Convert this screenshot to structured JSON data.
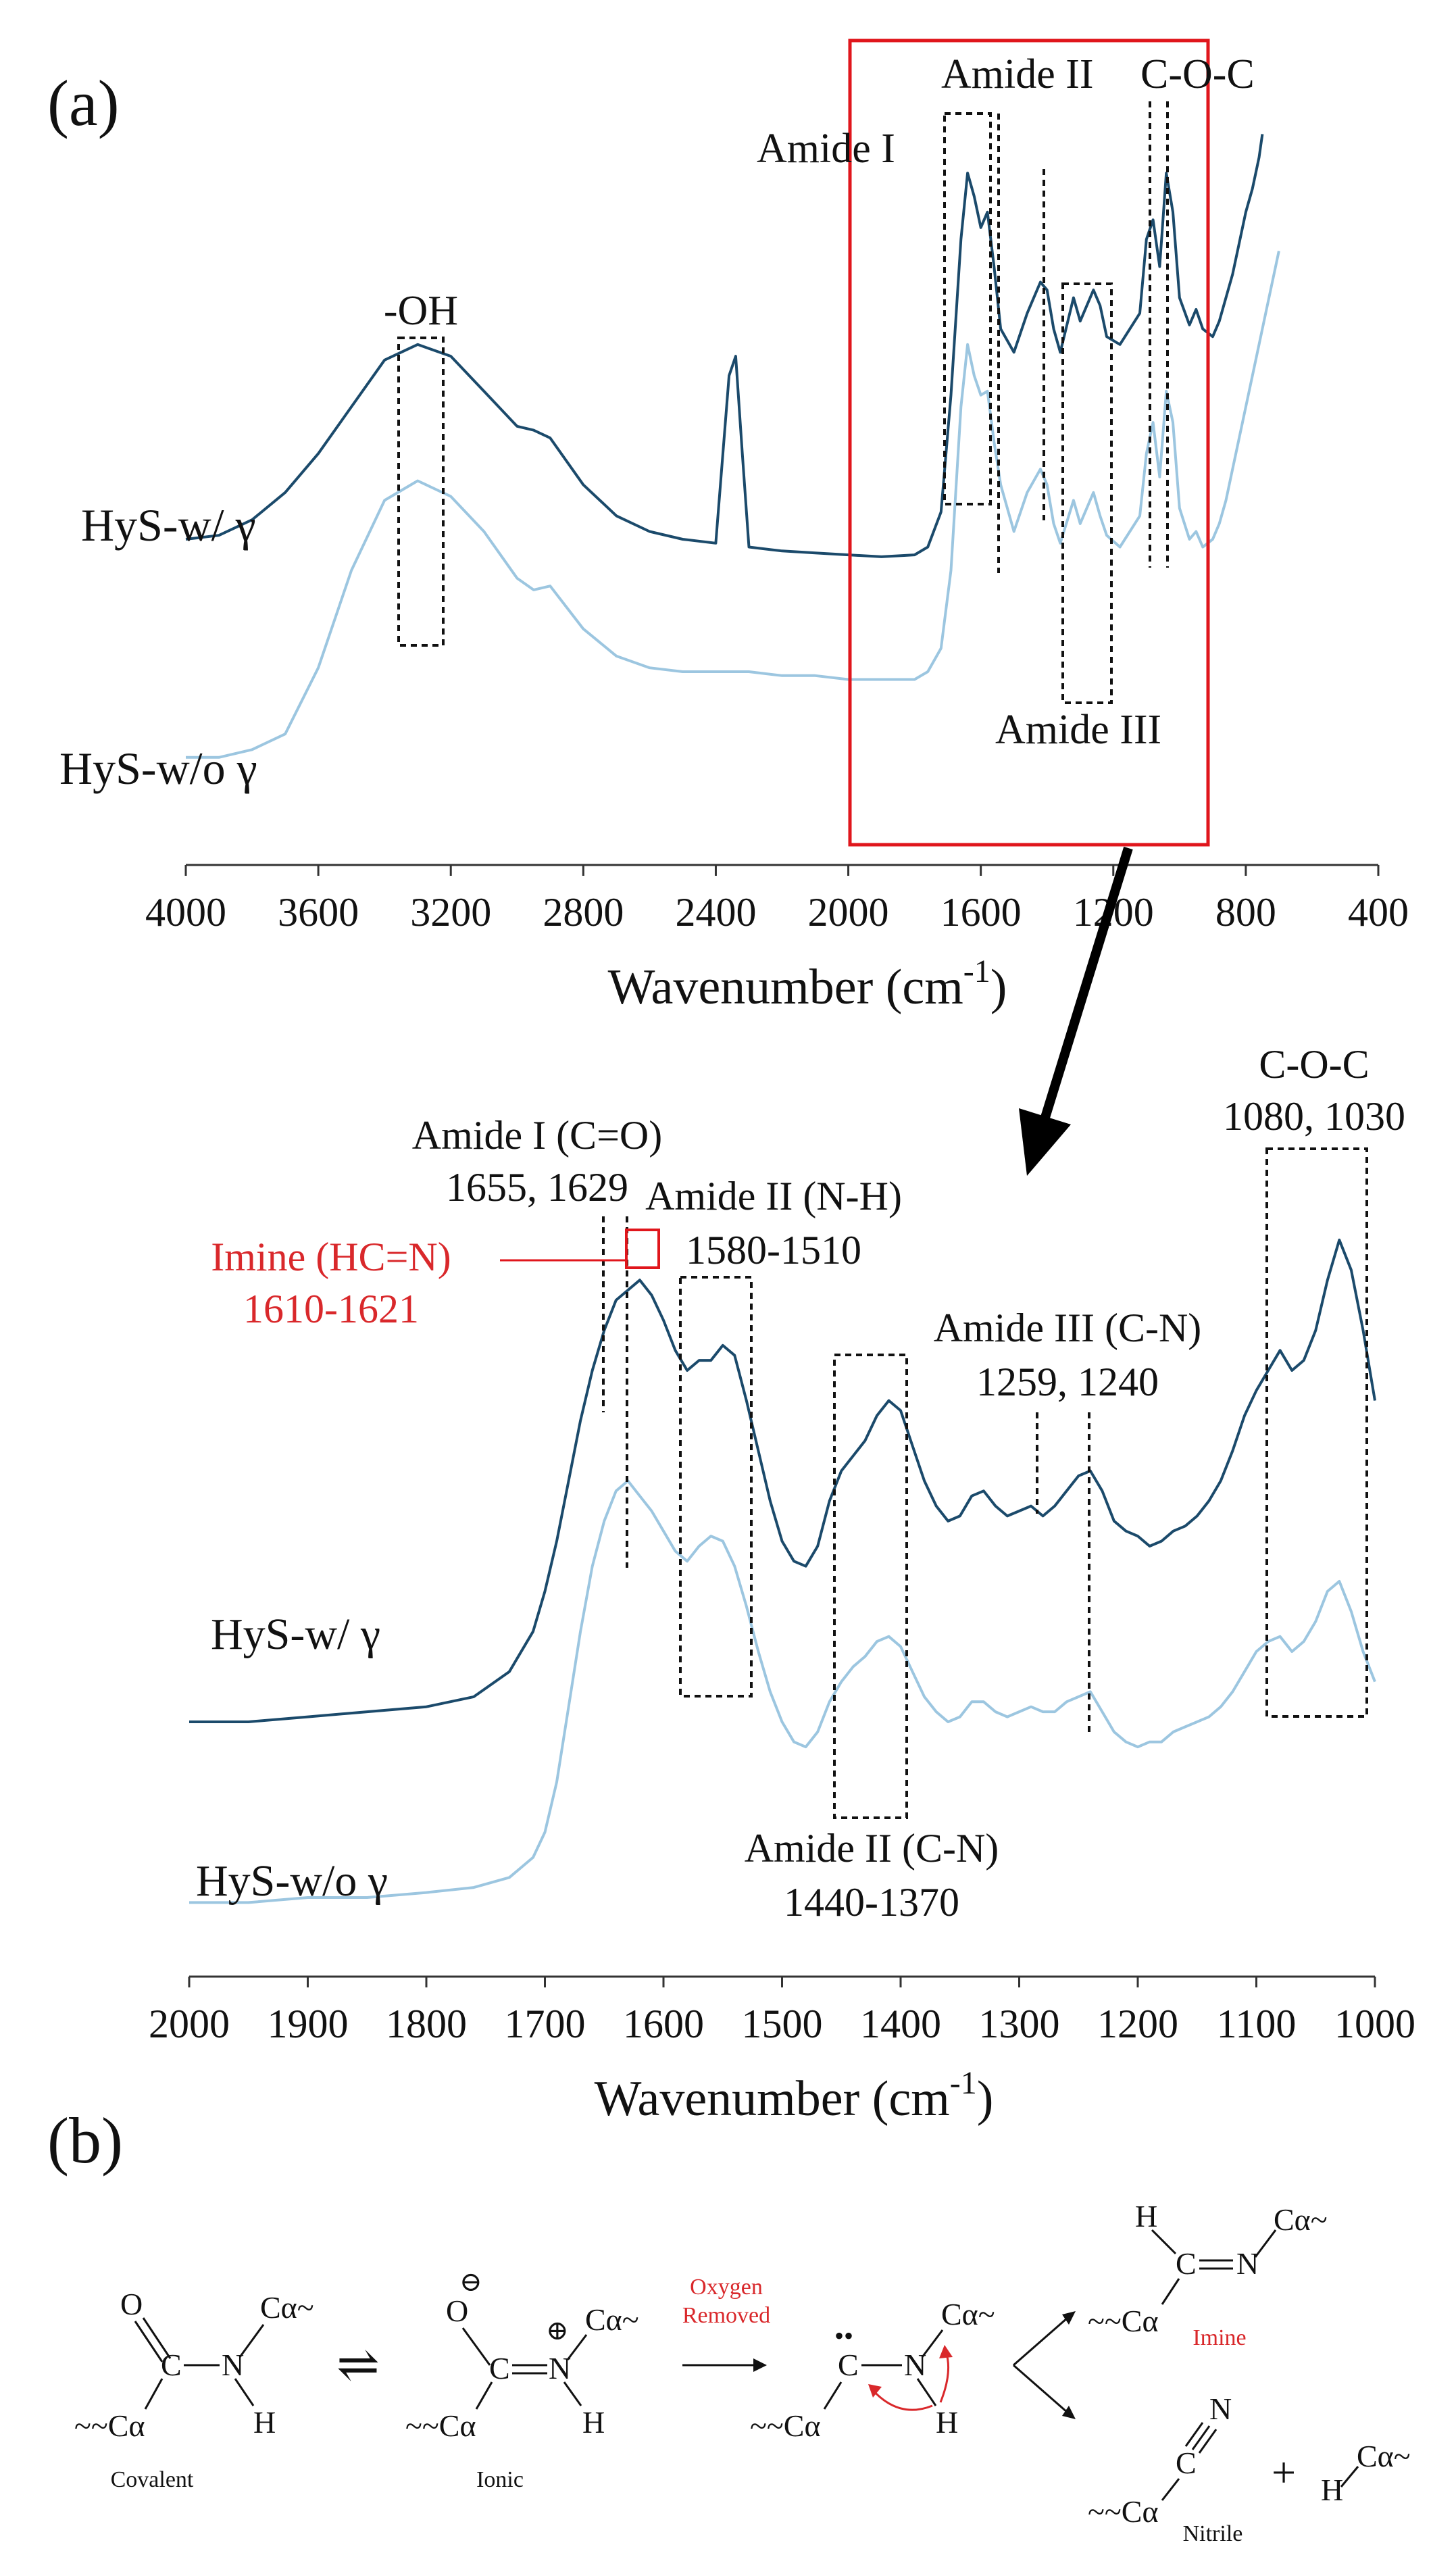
{
  "panel_a_label": "(a)",
  "panel_b_label": "(b)",
  "colors": {
    "dark": "#1b4a6b",
    "light": "#9cc6e0",
    "box": "#e0161c",
    "red_text": "#d9282b"
  },
  "chart_data": [
    {
      "type": "line",
      "panel": "a",
      "xlabel": "Wavenumber (cm",
      "xlabel_sup": "-1",
      "xlabel_end": ")",
      "xlim": [
        4000,
        400
      ],
      "xticks": [
        "4000",
        "3600",
        "3200",
        "2800",
        "2400",
        "2000",
        "1600",
        "1200",
        "800",
        "400"
      ],
      "series": [
        {
          "name": "HyS-w/ γ",
          "color": "#1b4a6b",
          "x": [
            4000,
            3900,
            3800,
            3700,
            3600,
            3500,
            3400,
            3300,
            3200,
            3100,
            3000,
            2950,
            2900,
            2800,
            2700,
            2600,
            2500,
            2400,
            2360,
            2340,
            2320,
            2300,
            2200,
            2100,
            2000,
            1900,
            1800,
            1760,
            1720,
            1690,
            1660,
            1640,
            1620,
            1600,
            1580,
            1560,
            1540,
            1500,
            1460,
            1420,
            1400,
            1380,
            1360,
            1320,
            1300,
            1260,
            1240,
            1220,
            1180,
            1120,
            1100,
            1080,
            1060,
            1040,
            1020,
            1000,
            970,
            950,
            930,
            900,
            880,
            860,
            840,
            820,
            800,
            780,
            760,
            750
          ],
          "y": [
            0.08,
            0.09,
            0.13,
            0.2,
            0.3,
            0.42,
            0.54,
            0.58,
            0.55,
            0.46,
            0.37,
            0.36,
            0.34,
            0.22,
            0.14,
            0.1,
            0.08,
            0.07,
            0.5,
            0.55,
            0.3,
            0.06,
            0.05,
            0.045,
            0.04,
            0.035,
            0.04,
            0.06,
            0.15,
            0.45,
            0.85,
            1.02,
            0.96,
            0.88,
            0.92,
            0.78,
            0.62,
            0.56,
            0.66,
            0.74,
            0.72,
            0.62,
            0.56,
            0.7,
            0.64,
            0.72,
            0.68,
            0.6,
            0.58,
            0.66,
            0.85,
            0.9,
            0.78,
            1.02,
            0.92,
            0.7,
            0.63,
            0.67,
            0.62,
            0.6,
            0.64,
            0.7,
            0.76,
            0.84,
            0.92,
            0.98,
            1.06,
            1.12
          ]
        },
        {
          "name": "HyS-w/o γ",
          "color": "#9cc6e0",
          "x": [
            4000,
            3900,
            3800,
            3700,
            3600,
            3500,
            3400,
            3300,
            3200,
            3100,
            3000,
            2950,
            2900,
            2800,
            2700,
            2600,
            2500,
            2400,
            2300,
            2200,
            2100,
            2000,
            1900,
            1800,
            1760,
            1720,
            1690,
            1660,
            1640,
            1620,
            1600,
            1580,
            1560,
            1540,
            1500,
            1460,
            1420,
            1400,
            1380,
            1360,
            1320,
            1300,
            1260,
            1240,
            1220,
            1180,
            1120,
            1100,
            1080,
            1060,
            1040,
            1020,
            1000,
            970,
            950,
            930,
            900,
            880,
            860,
            840,
            820,
            800,
            780,
            760,
            740,
            720,
            700
          ],
          "y": [
            -0.48,
            -0.48,
            -0.46,
            -0.42,
            -0.25,
            0.0,
            0.18,
            0.23,
            0.19,
            0.1,
            -0.02,
            -0.05,
            -0.04,
            -0.15,
            -0.22,
            -0.25,
            -0.26,
            -0.26,
            -0.26,
            -0.27,
            -0.27,
            -0.28,
            -0.28,
            -0.28,
            -0.26,
            -0.2,
            0.0,
            0.42,
            0.58,
            0.5,
            0.45,
            0.46,
            0.33,
            0.22,
            0.1,
            0.2,
            0.26,
            0.22,
            0.12,
            0.07,
            0.18,
            0.12,
            0.2,
            0.14,
            0.09,
            0.06,
            0.14,
            0.3,
            0.38,
            0.24,
            0.46,
            0.38,
            0.16,
            0.08,
            0.1,
            0.06,
            0.08,
            0.12,
            0.18,
            0.26,
            0.34,
            0.42,
            0.5,
            0.58,
            0.66,
            0.74,
            0.82
          ]
        }
      ],
      "annotations": {
        "oh": "-OH",
        "amide1": "Amide I",
        "amide2": "Amide II",
        "coc": "C-O-C",
        "amide3": "Amide III"
      }
    },
    {
      "type": "line",
      "panel": "a-zoom",
      "xlabel": "Wavenumber (cm",
      "xlabel_sup": "-1",
      "xlabel_end": ")",
      "xlim": [
        2000,
        1000
      ],
      "xticks": [
        "2000",
        "1900",
        "1800",
        "1700",
        "1600",
        "1500",
        "1400",
        "1300",
        "1200",
        "1100",
        "1000"
      ],
      "series": [
        {
          "name": "HyS-w/ γ",
          "color": "#1b4a6b",
          "x": [
            2000,
            1950,
            1900,
            1850,
            1800,
            1760,
            1730,
            1710,
            1700,
            1690,
            1680,
            1670,
            1660,
            1650,
            1640,
            1630,
            1620,
            1610,
            1600,
            1590,
            1580,
            1570,
            1560,
            1550,
            1540,
            1530,
            1520,
            1510,
            1500,
            1490,
            1480,
            1470,
            1460,
            1450,
            1440,
            1430,
            1420,
            1410,
            1400,
            1390,
            1380,
            1370,
            1360,
            1350,
            1340,
            1330,
            1320,
            1310,
            1300,
            1290,
            1280,
            1270,
            1260,
            1250,
            1240,
            1230,
            1220,
            1210,
            1200,
            1190,
            1180,
            1170,
            1160,
            1150,
            1140,
            1130,
            1120,
            1110,
            1100,
            1090,
            1080,
            1070,
            1060,
            1050,
            1040,
            1030,
            1020,
            1010,
            1000
          ],
          "y": [
            0.02,
            0.02,
            0.03,
            0.04,
            0.05,
            0.07,
            0.12,
            0.2,
            0.28,
            0.38,
            0.5,
            0.62,
            0.72,
            0.8,
            0.86,
            0.88,
            0.9,
            0.87,
            0.82,
            0.76,
            0.72,
            0.74,
            0.74,
            0.77,
            0.75,
            0.66,
            0.56,
            0.46,
            0.38,
            0.34,
            0.33,
            0.37,
            0.46,
            0.52,
            0.55,
            0.58,
            0.63,
            0.66,
            0.64,
            0.57,
            0.5,
            0.45,
            0.42,
            0.43,
            0.47,
            0.48,
            0.45,
            0.43,
            0.44,
            0.45,
            0.43,
            0.45,
            0.48,
            0.51,
            0.52,
            0.48,
            0.42,
            0.4,
            0.39,
            0.37,
            0.38,
            0.4,
            0.41,
            0.43,
            0.46,
            0.5,
            0.56,
            0.63,
            0.68,
            0.72,
            0.76,
            0.72,
            0.74,
            0.8,
            0.9,
            0.98,
            0.92,
            0.8,
            0.66
          ]
        },
        {
          "name": "HyS-w/o γ",
          "color": "#9cc6e0",
          "x": [
            2000,
            1950,
            1900,
            1850,
            1800,
            1760,
            1730,
            1710,
            1700,
            1690,
            1680,
            1670,
            1660,
            1650,
            1640,
            1630,
            1620,
            1610,
            1600,
            1590,
            1580,
            1570,
            1560,
            1550,
            1540,
            1530,
            1520,
            1510,
            1500,
            1490,
            1480,
            1470,
            1460,
            1450,
            1440,
            1430,
            1420,
            1410,
            1400,
            1390,
            1380,
            1370,
            1360,
            1350,
            1340,
            1330,
            1320,
            1310,
            1300,
            1290,
            1280,
            1270,
            1260,
            1250,
            1240,
            1230,
            1220,
            1210,
            1200,
            1190,
            1180,
            1170,
            1160,
            1150,
            1140,
            1130,
            1120,
            1110,
            1100,
            1090,
            1080,
            1070,
            1060,
            1050,
            1040,
            1030,
            1020,
            1010,
            1000
          ],
          "y": [
            -0.34,
            -0.34,
            -0.33,
            -0.33,
            -0.32,
            -0.31,
            -0.29,
            -0.25,
            -0.2,
            -0.1,
            0.05,
            0.2,
            0.33,
            0.42,
            0.48,
            0.5,
            0.47,
            0.44,
            0.4,
            0.36,
            0.34,
            0.37,
            0.39,
            0.38,
            0.33,
            0.25,
            0.16,
            0.08,
            0.02,
            -0.02,
            -0.03,
            0.0,
            0.06,
            0.1,
            0.13,
            0.15,
            0.18,
            0.19,
            0.17,
            0.12,
            0.07,
            0.04,
            0.02,
            0.03,
            0.06,
            0.06,
            0.04,
            0.03,
            0.04,
            0.05,
            0.04,
            0.04,
            0.06,
            0.07,
            0.08,
            0.04,
            0.0,
            -0.02,
            -0.03,
            -0.02,
            -0.02,
            0.0,
            0.01,
            0.02,
            0.03,
            0.05,
            0.08,
            0.12,
            0.16,
            0.18,
            0.19,
            0.16,
            0.18,
            0.22,
            0.28,
            0.3,
            0.24,
            0.16,
            0.1
          ]
        }
      ],
      "annotations": {
        "amide1_title": "Amide I (C=O)",
        "amide1_vals": "1655, 1629",
        "amide2_title": "Amide II (N-H)",
        "amide2_vals": "1580-1510",
        "imine_title": "Imine (HC=N)",
        "imine_vals": "1610-1621",
        "amide3_title": "Amide III (C-N)",
        "amide3_vals": "1259, 1240",
        "coc_title": "C-O-C",
        "coc_vals": "1080, 1030",
        "amide2cn_title": "Amide II (C-N)",
        "amide2cn_vals": "1440-1370"
      }
    }
  ],
  "scheme": {
    "covalent": "Covalent",
    "ionic": "Ionic",
    "oxygen": "Oxygen",
    "removed": "Removed",
    "imine": "Imine",
    "nitrile": "Nitrile",
    "plus": "+",
    "equilibrium": "⇌",
    "atoms": {
      "O": "O",
      "C": "C",
      "N": "N",
      "H": "H",
      "Ca": "Cα",
      "Ca_tail": "Cα~",
      "tail_Ca": "~~Cα",
      "minus": "⊖",
      "plus_charge": "⊕",
      "lone_pair": "••"
    }
  }
}
